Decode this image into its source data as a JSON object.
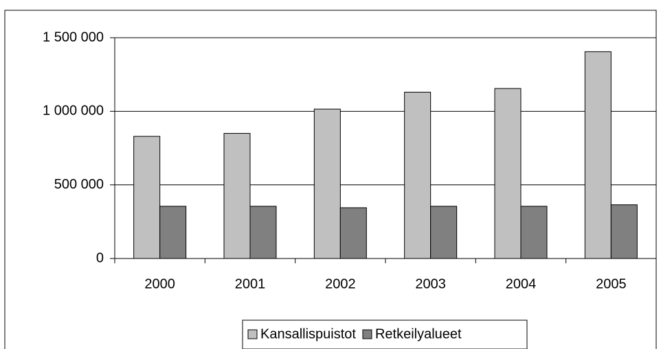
{
  "chart_data": {
    "type": "bar",
    "categories": [
      "2000",
      "2001",
      "2002",
      "2003",
      "2004",
      "2005"
    ],
    "series": [
      {
        "name": "Kansallispuistot",
        "color": "#c0c0c0",
        "values": [
          830000,
          850000,
          1015000,
          1130000,
          1155000,
          1405000
        ]
      },
      {
        "name": "Retkeilyalueet",
        "color": "#808080",
        "values": [
          355000,
          355000,
          345000,
          355000,
          355000,
          365000
        ]
      }
    ],
    "ylim": [
      0,
      1500000
    ],
    "yticks": [
      0,
      {
        "value": 500000,
        "label": "500 000"
      },
      {
        "value": 1000000,
        "label": "1 000 000"
      },
      {
        "value": 1500000,
        "label": "1 500 000"
      }
    ],
    "grid": true,
    "legend": "bottom"
  }
}
